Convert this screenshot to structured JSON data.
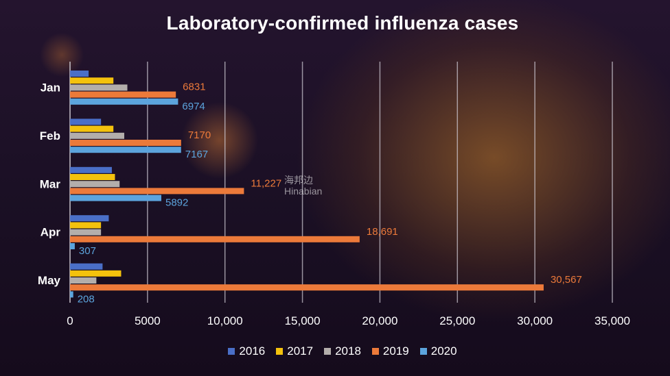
{
  "chart_data": {
    "type": "bar",
    "orientation": "horizontal",
    "title": "Laboratory-confirmed influenza cases",
    "categories": [
      "Jan",
      "Feb",
      "Mar",
      "Apr",
      "May"
    ],
    "xlim": [
      0,
      35000
    ],
    "ticks": [
      {
        "value": 0,
        "label": "0"
      },
      {
        "value": 5000,
        "label": "5000"
      },
      {
        "value": 10000,
        "label": "10,000"
      },
      {
        "value": 15000,
        "label": "15,000"
      },
      {
        "value": 20000,
        "label": "20,000"
      },
      {
        "value": 25000,
        "label": "25,000"
      },
      {
        "value": 30000,
        "label": "30,000"
      },
      {
        "value": 35000,
        "label": "35,000"
      }
    ],
    "grid": true,
    "legend_position": "bottom",
    "series": [
      {
        "name": "2016",
        "color": "#4a6fc7",
        "values": [
          1200,
          2000,
          2700,
          2500,
          2100
        ]
      },
      {
        "name": "2017",
        "color": "#f4c20d",
        "values": [
          2800,
          2800,
          2900,
          2000,
          3300
        ]
      },
      {
        "name": "2018",
        "color": "#b3aeab",
        "values": [
          3700,
          3500,
          3200,
          2000,
          1700
        ]
      },
      {
        "name": "2019",
        "color": "#ec7a3a",
        "values": [
          6831,
          7170,
          11227,
          18691,
          30567
        ],
        "labels": [
          "6831",
          "7170",
          "11,227",
          "18,691",
          "30,567"
        ]
      },
      {
        "name": "2020",
        "color": "#5ca4dd",
        "values": [
          6974,
          7167,
          5892,
          307,
          208
        ],
        "labels": [
          "6974",
          "7167",
          "5892",
          "307",
          "208"
        ]
      }
    ]
  },
  "watermark": {
    "line1": "海邦边",
    "line2": "Hinabian"
  }
}
